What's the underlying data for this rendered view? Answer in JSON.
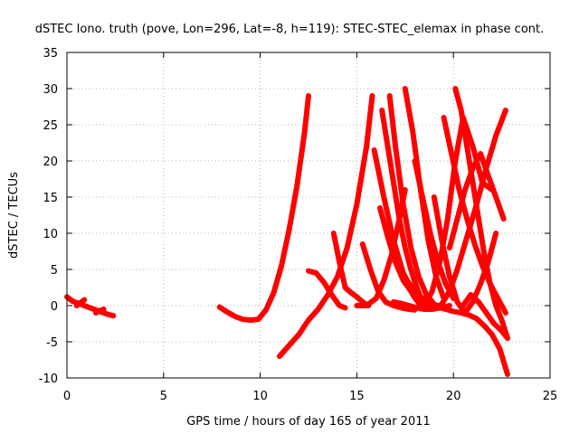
{
  "chart_data": {
    "type": "line",
    "title": "dSTEC Iono. truth (pove, Lon=296, Lat=-8, h=119): STEC-STEC_elemax in phase cont.",
    "xlabel": "GPS time / hours of day 165 of year 2011",
    "ylabel": "dSTEC  / TECUs",
    "xlim": [
      0,
      25
    ],
    "ylim": [
      -10,
      35
    ],
    "xticks": [
      0,
      5,
      10,
      15,
      20,
      25
    ],
    "yticks": [
      -10,
      -5,
      0,
      5,
      10,
      15,
      20,
      25,
      30,
      35
    ],
    "xtick_labels": [
      "0",
      "5",
      "10",
      "15",
      "20",
      "25"
    ],
    "ytick_labels": [
      "-10",
      "-5",
      "0",
      "5",
      "10",
      "15",
      "20",
      "25",
      "30",
      "35"
    ],
    "grid": true,
    "legend": "none",
    "color": "#ff0000",
    "series": [
      {
        "x": [
          0.0,
          0.3,
          0.6,
          0.9,
          1.2,
          1.5,
          1.8,
          2.1,
          2.4
        ],
        "y": [
          1.2,
          0.6,
          0.3,
          0.0,
          -0.3,
          -0.6,
          -0.9,
          -1.2,
          -1.4
        ]
      },
      {
        "x": [
          0.5,
          0.7,
          0.9
        ],
        "y": [
          0.0,
          0.4,
          0.8
        ]
      },
      {
        "x": [
          1.5,
          1.7,
          1.9
        ],
        "y": [
          -1.0,
          -0.7,
          -0.5
        ]
      },
      {
        "x": [
          7.9,
          8.3,
          8.7,
          9.1,
          9.5,
          9.9,
          10.3,
          10.7,
          11.1,
          11.5,
          11.9,
          12.3,
          12.5
        ],
        "y": [
          -0.2,
          -0.9,
          -1.5,
          -1.9,
          -2.0,
          -1.9,
          -0.6,
          1.8,
          5.5,
          10.5,
          16.5,
          24.0,
          29.0
        ]
      },
      {
        "x": [
          11.0,
          11.5,
          12.0,
          12.5,
          13.0,
          13.5,
          14.0,
          14.5,
          15.0,
          15.5,
          15.8
        ],
        "y": [
          -7.0,
          -5.5,
          -4.0,
          -2.0,
          -0.5,
          1.5,
          4.0,
          8.0,
          14.0,
          22.0,
          29.0
        ]
      },
      {
        "x": [
          12.5,
          12.9,
          13.3,
          13.7,
          14.1,
          14.4
        ],
        "y": [
          4.8,
          4.5,
          3.2,
          1.5,
          0.0,
          -0.3
        ]
      },
      {
        "x": [
          13.8,
          14.1,
          14.4,
          14.7,
          15.0,
          15.3,
          15.6
        ],
        "y": [
          10.0,
          6.0,
          2.5,
          1.8,
          1.2,
          0.5,
          0.0
        ]
      },
      {
        "x": [
          15.3,
          15.7,
          16.1,
          16.5,
          16.9,
          17.3,
          17.7,
          18.0
        ],
        "y": [
          8.5,
          5.0,
          2.0,
          0.5,
          0.0,
          -0.3,
          -0.5,
          -0.6
        ]
      },
      {
        "x": [
          15.0,
          15.5,
          16.0,
          16.4,
          16.8,
          17.2,
          17.5
        ],
        "y": [
          0.0,
          0.0,
          1.0,
          3.5,
          7.0,
          12.0,
          16.0
        ]
      },
      {
        "x": [
          15.9,
          16.4,
          16.9,
          17.4,
          17.9,
          18.3
        ],
        "y": [
          21.5,
          15.0,
          9.0,
          4.5,
          1.5,
          0.0
        ]
      },
      {
        "x": [
          16.3,
          16.6,
          16.9,
          17.2,
          17.5,
          17.8,
          18.1,
          18.4,
          18.7
        ],
        "y": [
          27.0,
          22.0,
          17.0,
          12.0,
          8.0,
          5.0,
          2.5,
          0.5,
          -0.3
        ]
      },
      {
        "x": [
          16.2,
          16.6,
          17.0,
          17.4,
          17.8,
          18.2,
          18.6,
          19.0,
          19.4,
          19.8,
          20.2,
          20.7,
          21.2,
          21.7,
          22.2,
          22.7
        ],
        "y": [
          13.5,
          9.5,
          6.0,
          3.5,
          2.0,
          1.0,
          0.0,
          -0.4,
          0.2,
          2.0,
          5.0,
          9.5,
          14.0,
          19.0,
          23.5,
          27.0
        ]
      },
      {
        "x": [
          16.7,
          17.0,
          17.4,
          17.8,
          18.2,
          18.6,
          19.0,
          19.4,
          19.8
        ],
        "y": [
          29.0,
          22.0,
          14.0,
          8.0,
          4.0,
          1.5,
          0.2,
          -0.3,
          0.0
        ]
      },
      {
        "x": [
          17.5,
          17.9,
          18.3,
          18.7,
          19.1,
          19.5
        ],
        "y": [
          30.0,
          24.0,
          16.0,
          9.0,
          4.0,
          1.0
        ]
      },
      {
        "x": [
          16.9,
          17.3,
          17.7,
          18.1,
          18.5,
          18.9,
          19.3
        ],
        "y": [
          0.5,
          0.3,
          0.0,
          -0.3,
          -0.5,
          -0.5,
          -0.3
        ]
      },
      {
        "x": [
          17.2,
          17.6,
          18.0,
          18.4,
          18.8,
          19.2,
          19.6,
          20.0,
          20.4,
          20.8,
          21.2,
          21.6,
          22.0,
          22.4,
          22.8
        ],
        "y": [
          5.5,
          3.5,
          2.0,
          1.0,
          0.3,
          -0.2,
          -0.5,
          -0.8,
          -1.0,
          -1.3,
          -1.8,
          -2.8,
          -4.0,
          -6.0,
          -9.5
        ]
      },
      {
        "x": [
          18.0,
          18.4,
          18.8,
          19.2,
          19.6,
          20.0
        ],
        "y": [
          20.0,
          15.0,
          10.0,
          6.0,
          3.0,
          1.0
        ]
      },
      {
        "x": [
          18.5,
          18.9,
          19.3,
          19.7,
          20.1,
          20.5,
          21.0,
          21.5,
          22.0
        ],
        "y": [
          0.0,
          2.0,
          6.0,
          12.0,
          20.0,
          26.0,
          22.0,
          17.0,
          16.0
        ]
      },
      {
        "x": [
          19.0,
          19.4,
          19.8,
          20.2,
          20.6,
          21.0,
          21.4,
          21.8,
          22.2
        ],
        "y": [
          15.0,
          9.0,
          4.0,
          0.5,
          -1.0,
          0.5,
          3.0,
          6.0,
          10.0
        ]
      },
      {
        "x": [
          19.5,
          19.9,
          20.3,
          20.7,
          21.1,
          21.5,
          21.9,
          22.3,
          22.7
        ],
        "y": [
          26.0,
          21.0,
          16.0,
          12.0,
          8.5,
          5.5,
          3.0,
          1.0,
          -1.0
        ]
      },
      {
        "x": [
          20.1,
          20.4,
          20.7,
          21.0,
          21.3,
          21.6,
          21.9,
          22.2,
          22.5,
          22.8
        ],
        "y": [
          30.0,
          27.0,
          22.0,
          17.0,
          12.0,
          7.0,
          3.0,
          0.0,
          -2.0,
          -4.5
        ]
      },
      {
        "x": [
          19.8,
          20.2,
          20.6,
          21.0,
          21.4,
          21.8,
          22.2,
          22.6
        ],
        "y": [
          8.0,
          12.0,
          16.0,
          19.0,
          21.0,
          18.0,
          15.0,
          12.0
        ]
      },
      {
        "x": [
          20.5,
          20.9,
          21.3,
          21.7,
          22.1,
          22.5,
          22.8
        ],
        "y": [
          0.0,
          1.5,
          0.5,
          -1.0,
          -2.5,
          -3.5,
          -4.5
        ]
      }
    ]
  }
}
